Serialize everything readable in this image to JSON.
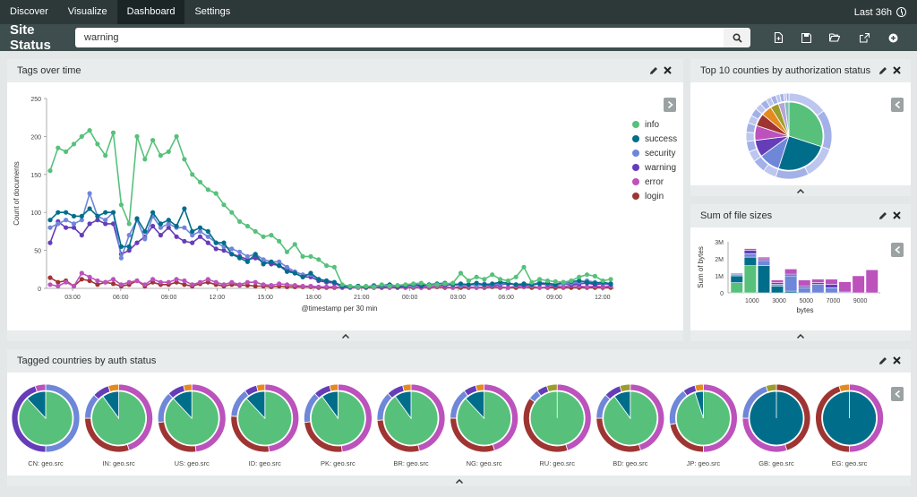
{
  "nav": {
    "tabs": [
      {
        "label": "Discover"
      },
      {
        "label": "Visualize"
      },
      {
        "label": "Dashboard"
      },
      {
        "label": "Settings"
      }
    ],
    "active_tab": "Dashboard",
    "time_range": "Last 36h"
  },
  "dashboard": {
    "title": "Site Status",
    "query": "warning",
    "toolbar_icons": [
      "search-icon",
      "new-dashboard-icon",
      "save-icon",
      "open-icon",
      "share-icon",
      "add-panel-icon"
    ]
  },
  "colors": {
    "info": "#57c17b",
    "success": "#006e8a",
    "security": "#6f87d8",
    "warning": "#663db8",
    "error": "#bc52bc",
    "login": "#9e3533",
    "nav_bg": "#2d3838",
    "bar_bg": "#3e4d4d"
  },
  "panels": {
    "tags_over_time": {
      "title": "Tags over time",
      "legend": [
        {
          "label": "info",
          "color": "#57c17b"
        },
        {
          "label": "success",
          "color": "#006e8a"
        },
        {
          "label": "security",
          "color": "#6f87d8"
        },
        {
          "label": "warning",
          "color": "#663db8"
        },
        {
          "label": "error",
          "color": "#bc52bc"
        },
        {
          "label": "login",
          "color": "#9e3533"
        }
      ]
    },
    "top_counties": {
      "title": "Top 10 counties by authorization status"
    },
    "file_sizes": {
      "title": "Sum of file sizes"
    },
    "tagged_countries": {
      "title": "Tagged countries by auth status"
    }
  },
  "chart_data": [
    {
      "id": "tags-over-time",
      "type": "line",
      "xlabel": "@timestamp per 30 min",
      "ylabel": "Count of documents",
      "ylim": [
        0,
        250
      ],
      "yticks": [
        0,
        50,
        100,
        150,
        200,
        250
      ],
      "xtick_labels": [
        "03:00",
        "06:00",
        "09:00",
        "12:00",
        "15:00",
        "18:00",
        "21:00",
        "00:00",
        "03:00",
        "06:00",
        "09:00",
        "12:00"
      ],
      "x_points": 72,
      "legend_position": "right",
      "series": [
        {
          "name": "info",
          "values": [
            155,
            185,
            180,
            190,
            200,
            208,
            190,
            175,
            205,
            110,
            85,
            200,
            170,
            195,
            175,
            180,
            200,
            170,
            150,
            140,
            130,
            125,
            110,
            100,
            88,
            82,
            75,
            68,
            70,
            62,
            48,
            58,
            42,
            42,
            38,
            30,
            28,
            5,
            3,
            2,
            3,
            2,
            5,
            3,
            4,
            5,
            6,
            7,
            4,
            5,
            6,
            7,
            20,
            10,
            15,
            12,
            18,
            12,
            10,
            15,
            28,
            8,
            12,
            10,
            9,
            8,
            10,
            15,
            18,
            16,
            10,
            12
          ]
        },
        {
          "name": "success",
          "values": [
            90,
            100,
            100,
            95,
            95,
            105,
            95,
            100,
            100,
            55,
            55,
            92,
            75,
            100,
            85,
            90,
            82,
            105,
            75,
            80,
            75,
            60,
            60,
            45,
            40,
            35,
            45,
            32,
            35,
            30,
            22,
            20,
            15,
            20,
            12,
            10,
            8,
            3,
            2,
            3,
            2,
            3,
            4,
            5,
            3,
            4,
            5,
            4,
            5,
            6,
            7,
            5,
            6,
            5,
            7,
            5,
            6,
            8,
            7,
            5,
            6,
            5,
            6,
            7,
            5,
            8,
            9,
            10,
            8,
            7,
            8,
            6
          ]
        },
        {
          "name": "security",
          "values": [
            80,
            85,
            90,
            85,
            90,
            125,
            95,
            90,
            100,
            40,
            70,
            90,
            65,
            95,
            80,
            85,
            80,
            80,
            70,
            75,
            68,
            60,
            55,
            52,
            48,
            42,
            45,
            38,
            35,
            35,
            28,
            22,
            18,
            18,
            12,
            10,
            8,
            3,
            2,
            3,
            2,
            4,
            3,
            4,
            3,
            4,
            3,
            5,
            4,
            5,
            6,
            5,
            4,
            5,
            4,
            6,
            5,
            6,
            7,
            5,
            6,
            5,
            8,
            6,
            5,
            6,
            7,
            8,
            10,
            8,
            7,
            6
          ]
        },
        {
          "name": "warning",
          "values": [
            60,
            88,
            80,
            80,
            70,
            85,
            90,
            85,
            85,
            45,
            50,
            60,
            68,
            82,
            70,
            80,
            68,
            62,
            60,
            68,
            60,
            52,
            50,
            45,
            42,
            38,
            40,
            35,
            32,
            30,
            25,
            20,
            15,
            15,
            10,
            8,
            7,
            2,
            2,
            3,
            2,
            3,
            2,
            3,
            2,
            3,
            4,
            3,
            4,
            5,
            4,
            5,
            4,
            5,
            4,
            5,
            4,
            5,
            6,
            5,
            4,
            5,
            6,
            5,
            4,
            6,
            5,
            6,
            7,
            5,
            6,
            5
          ]
        },
        {
          "name": "error",
          "values": [
            5,
            3,
            8,
            3,
            20,
            15,
            10,
            8,
            12,
            5,
            8,
            10,
            5,
            12,
            8,
            8,
            12,
            10,
            5,
            8,
            12,
            8,
            5,
            8,
            5,
            8,
            8,
            5,
            4,
            6,
            5,
            4,
            3,
            3,
            2,
            2,
            2,
            1,
            1,
            1,
            2,
            1,
            2,
            1,
            2,
            1,
            2,
            1,
            2,
            3,
            2,
            1,
            3,
            2,
            1,
            2,
            3,
            2,
            1,
            3,
            2,
            3,
            1,
            2,
            3,
            2,
            4,
            3,
            2,
            3,
            2,
            3
          ]
        },
        {
          "name": "login",
          "values": [
            14,
            8,
            10,
            3,
            12,
            10,
            5,
            8,
            6,
            3,
            5,
            10,
            3,
            8,
            5,
            5,
            8,
            5,
            3,
            6,
            8,
            5,
            3,
            5,
            4,
            4,
            3,
            3,
            2,
            3,
            2,
            2,
            2,
            2,
            1,
            1,
            1,
            1,
            1,
            1,
            1,
            1,
            1,
            1,
            1,
            1,
            1,
            1,
            1,
            2,
            1,
            1,
            1,
            1,
            1,
            1,
            2,
            1,
            1,
            1,
            2,
            1,
            1,
            1,
            1,
            1,
            1,
            1,
            1,
            1,
            1,
            1
          ]
        }
      ]
    },
    {
      "id": "top-counties",
      "type": "pie",
      "inner": [
        {
          "label": "info",
          "value": 30,
          "color": "#57c17b"
        },
        {
          "label": "success",
          "value": 25,
          "color": "#006e8a"
        },
        {
          "label": "security",
          "value": 10,
          "color": "#6f87d8"
        },
        {
          "label": "warning",
          "value": 8,
          "color": "#663db8"
        },
        {
          "label": "error",
          "value": 7,
          "color": "#bc52bc"
        },
        {
          "label": "login",
          "value": 6,
          "color": "#9e3533"
        },
        {
          "label": "other",
          "value": 5,
          "color": "#e58a1e"
        },
        {
          "label": "other",
          "value": 4,
          "color": "#9c9e2b"
        },
        {
          "label": "other",
          "value": 3,
          "color": "#b6a4d6"
        },
        {
          "label": "other",
          "value": 2,
          "color": "#7bc3b8"
        }
      ],
      "outer_colors": [
        "#bcc6ef",
        "#a3b1e8"
      ]
    },
    {
      "id": "file-sizes",
      "type": "bar",
      "xlabel": "bytes",
      "ylabel": "Sum of bytes",
      "ylim": [
        0,
        3000000
      ],
      "ytick_labels": [
        "0",
        "1M",
        "2M",
        "3M"
      ],
      "xtick_labels": [
        "1000",
        "3000",
        "5000",
        "7000",
        "9000"
      ],
      "categories": [
        0,
        1000,
        2000,
        3000,
        4000,
        5000,
        6000,
        7000,
        8000,
        9000,
        10000
      ],
      "series": [
        {
          "name": "info",
          "values": [
            600000,
            1600000,
            0,
            0,
            0,
            0,
            0,
            0,
            0,
            0,
            0
          ]
        },
        {
          "name": "success",
          "values": [
            400000,
            500000,
            1600000,
            400000,
            100000,
            0,
            0,
            0,
            0,
            0,
            0
          ]
        },
        {
          "name": "security",
          "values": [
            100000,
            200000,
            300000,
            100000,
            900000,
            300000,
            500000,
            300000,
            0,
            0,
            0
          ]
        },
        {
          "name": "warning",
          "values": [
            50000,
            200000,
            100000,
            100000,
            100000,
            100000,
            100000,
            200000,
            50000,
            0,
            0
          ]
        },
        {
          "name": "error",
          "values": [
            0,
            100000,
            100000,
            150000,
            300000,
            350000,
            200000,
            300000,
            600000,
            1000000,
            1350000
          ]
        }
      ]
    },
    {
      "id": "tagged-countries",
      "type": "pie",
      "countries": [
        {
          "label": "CN: geo.src",
          "inner": [
            [
              "#57c17b",
              88
            ],
            [
              "#006e8a",
              12
            ]
          ],
          "outer": [
            [
              "#6f87d8",
              50
            ],
            [
              "#663db8",
              45
            ],
            [
              "#bc52bc",
              5
            ]
          ]
        },
        {
          "label": "IN: geo.src",
          "inner": [
            [
              "#57c17b",
              90
            ],
            [
              "#006e8a",
              10
            ]
          ],
          "outer": [
            [
              "#bc52bc",
              45
            ],
            [
              "#9e3533",
              30
            ],
            [
              "#6f87d8",
              12
            ],
            [
              "#663db8",
              8
            ],
            [
              "#e58a1e",
              5
            ]
          ]
        },
        {
          "label": "US: geo.src",
          "inner": [
            [
              "#57c17b",
              88
            ],
            [
              "#006e8a",
              12
            ]
          ],
          "outer": [
            [
              "#bc52bc",
              48
            ],
            [
              "#9e3533",
              25
            ],
            [
              "#6f87d8",
              15
            ],
            [
              "#663db8",
              8
            ],
            [
              "#e58a1e",
              4
            ]
          ]
        },
        {
          "label": "ID: geo.src",
          "inner": [
            [
              "#57c17b",
              88
            ],
            [
              "#006e8a",
              12
            ]
          ],
          "outer": [
            [
              "#bc52bc",
              48
            ],
            [
              "#9e3533",
              28
            ],
            [
              "#6f87d8",
              14
            ],
            [
              "#663db8",
              6
            ],
            [
              "#e58a1e",
              4
            ]
          ]
        },
        {
          "label": "PK: geo.src",
          "inner": [
            [
              "#57c17b",
              90
            ],
            [
              "#006e8a",
              10
            ]
          ],
          "outer": [
            [
              "#bc52bc",
              48
            ],
            [
              "#9e3533",
              25
            ],
            [
              "#6f87d8",
              15
            ],
            [
              "#663db8",
              8
            ],
            [
              "#e58a1e",
              4
            ]
          ]
        },
        {
          "label": "BR: geo.src",
          "inner": [
            [
              "#57c17b",
              90
            ],
            [
              "#006e8a",
              10
            ]
          ],
          "outer": [
            [
              "#bc52bc",
              46
            ],
            [
              "#9e3533",
              28
            ],
            [
              "#6f87d8",
              14
            ],
            [
              "#663db8",
              8
            ],
            [
              "#e58a1e",
              4
            ]
          ]
        },
        {
          "label": "NG: geo.src",
          "inner": [
            [
              "#57c17b",
              88
            ],
            [
              "#006e8a",
              12
            ]
          ],
          "outer": [
            [
              "#bc52bc",
              45
            ],
            [
              "#9e3533",
              30
            ],
            [
              "#6f87d8",
              15
            ],
            [
              "#663db8",
              6
            ],
            [
              "#e58a1e",
              4
            ]
          ]
        },
        {
          "label": "RU: geo.src",
          "inner": [
            [
              "#57c17b",
              100
            ]
          ],
          "outer": [
            [
              "#bc52bc",
              45
            ],
            [
              "#9e3533",
              40
            ],
            [
              "#6f87d8",
              5
            ],
            [
              "#663db8",
              5
            ],
            [
              "#9c9e2b",
              5
            ]
          ]
        },
        {
          "label": "BD: geo.src",
          "inner": [
            [
              "#57c17b",
              90
            ],
            [
              "#006e8a",
              10
            ]
          ],
          "outer": [
            [
              "#bc52bc",
              45
            ],
            [
              "#9e3533",
              30
            ],
            [
              "#6f87d8",
              12
            ],
            [
              "#663db8",
              8
            ],
            [
              "#9c9e2b",
              5
            ]
          ]
        },
        {
          "label": "JP: geo.src",
          "inner": [
            [
              "#57c17b",
              95
            ],
            [
              "#006e8a",
              5
            ]
          ],
          "outer": [
            [
              "#bc52bc",
              50
            ],
            [
              "#9e3533",
              22
            ],
            [
              "#6f87d8",
              18
            ],
            [
              "#663db8",
              6
            ],
            [
              "#e58a1e",
              4
            ]
          ]
        },
        {
          "label": "GB: geo.src",
          "inner": [
            [
              "#006e8a",
              100
            ]
          ],
          "outer": [
            [
              "#9e3533",
              45
            ],
            [
              "#bc52bc",
              30
            ],
            [
              "#6f87d8",
              20
            ],
            [
              "#9c9e2b",
              5
            ]
          ]
        },
        {
          "label": "EG: geo.src",
          "inner": [
            [
              "#006e8a",
              100
            ]
          ],
          "outer": [
            [
              "#bc52bc",
              50
            ],
            [
              "#9e3533",
              45
            ],
            [
              "#e58a1e",
              5
            ]
          ]
        }
      ]
    }
  ]
}
